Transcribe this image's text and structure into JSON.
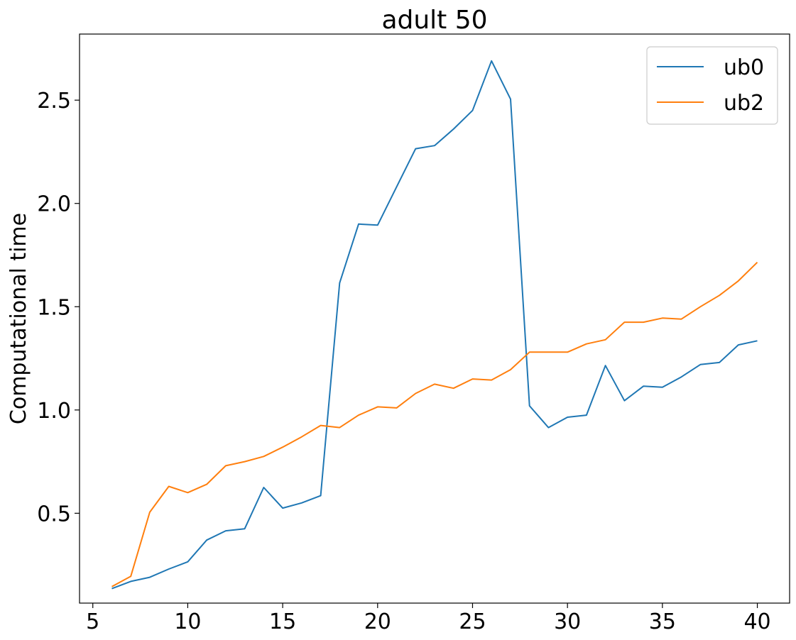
{
  "chart_data": {
    "type": "line",
    "title": "adult 50",
    "xlabel": "",
    "ylabel": "Computational time",
    "xlim": [
      4.3,
      41.7
    ],
    "ylim": [
      0.065,
      2.82
    ],
    "xticks": [
      5,
      10,
      15,
      20,
      25,
      30,
      35,
      40
    ],
    "yticks": [
      0.5,
      1.0,
      1.5,
      2.0,
      2.5
    ],
    "ytick_labels": [
      "0.5",
      "1.0",
      "1.5",
      "2.0",
      "2.5"
    ],
    "grid": false,
    "legend": "top-right",
    "x": [
      6,
      7,
      8,
      9,
      10,
      11,
      12,
      13,
      14,
      15,
      16,
      17,
      18,
      19,
      20,
      21,
      22,
      23,
      24,
      25,
      26,
      27,
      28,
      29,
      30,
      31,
      32,
      33,
      34,
      35,
      36,
      37,
      38,
      39,
      40
    ],
    "series": [
      {
        "name": "ub0",
        "color": "#1f77b4",
        "values": [
          0.135,
          0.17,
          0.19,
          0.23,
          0.265,
          0.37,
          0.415,
          0.425,
          0.625,
          0.525,
          0.55,
          0.585,
          1.615,
          1.9,
          1.895,
          2.08,
          2.265,
          2.28,
          2.36,
          2.45,
          2.69,
          2.505,
          1.02,
          0.915,
          0.965,
          0.975,
          1.215,
          1.045,
          1.115,
          1.11,
          1.16,
          1.22,
          1.23,
          1.315,
          1.335
        ]
      },
      {
        "name": "ub2",
        "color": "#ff7f0e",
        "values": [
          0.145,
          0.195,
          0.505,
          0.63,
          0.6,
          0.64,
          0.73,
          0.75,
          0.775,
          0.82,
          0.87,
          0.925,
          0.915,
          0.975,
          1.015,
          1.01,
          1.08,
          1.125,
          1.105,
          1.15,
          1.145,
          1.195,
          1.28,
          1.28,
          1.28,
          1.32,
          1.34,
          1.425,
          1.425,
          1.445,
          1.44,
          1.5,
          1.555,
          1.625,
          1.715
        ]
      }
    ]
  }
}
